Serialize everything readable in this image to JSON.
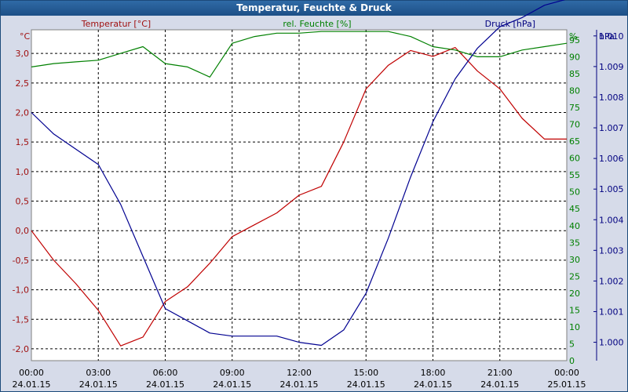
{
  "window": {
    "title": "Temperatur, Feuchte & Druck"
  },
  "chart_data": {
    "type": "line",
    "title": "Temperatur, Feuchte & Druck",
    "grid": true,
    "x": [
      "24.01.15 00:00",
      "24.01.15 01:00",
      "24.01.15 02:00",
      "24.01.15 03:00",
      "24.01.15 04:00",
      "24.01.15 05:00",
      "24.01.15 06:00",
      "24.01.15 07:00",
      "24.01.15 08:00",
      "24.01.15 09:00",
      "24.01.15 10:00",
      "24.01.15 11:00",
      "24.01.15 12:00",
      "24.01.15 13:00",
      "24.01.15 14:00",
      "24.01.15 15:00",
      "24.01.15 16:00",
      "24.01.15 17:00",
      "24.01.15 18:00",
      "24.01.15 19:00",
      "24.01.15 20:00",
      "24.01.15 21:00",
      "24.01.15 22:00",
      "24.01.15 23:00",
      "25.01.15 00:00"
    ],
    "x_ticks": [
      {
        "time": "00:00",
        "date": "24.01.15"
      },
      {
        "time": "03:00",
        "date": "24.01.15"
      },
      {
        "time": "06:00",
        "date": "24.01.15"
      },
      {
        "time": "09:00",
        "date": "24.01.15"
      },
      {
        "time": "12:00",
        "date": "24.01.15"
      },
      {
        "time": "15:00",
        "date": "24.01.15"
      },
      {
        "time": "18:00",
        "date": "24.01.15"
      },
      {
        "time": "21:00",
        "date": "24.01.15"
      },
      {
        "time": "00:00",
        "date": "25.01.15"
      }
    ],
    "axes": {
      "temperature": {
        "unit": "°C",
        "range": [
          -2.2,
          3.4
        ],
        "ticks": [
          "-2,0",
          "-1,5",
          "-1,0",
          "-0,5",
          "0,0",
          "0,5",
          "1,0",
          "1,5",
          "2,0",
          "2,5",
          "3,0"
        ],
        "color": "#a01010"
      },
      "humidity": {
        "unit": "%",
        "range": [
          0,
          98
        ],
        "ticks": [
          "0",
          "5",
          "10",
          "15",
          "20",
          "25",
          "30",
          "35",
          "40",
          "45",
          "50",
          "55",
          "60",
          "65",
          "70",
          "75",
          "80",
          "85",
          "90",
          "95"
        ],
        "color": "#008000"
      },
      "pressure": {
        "unit": "hPa",
        "range": [
          0.9994,
          1.0102
        ],
        "ticks": [
          "1.000",
          "1.001",
          "1.002",
          "1.003",
          "1.004",
          "1.005",
          "1.006",
          "1.007",
          "1.008",
          "1.009",
          "1.010"
        ],
        "color": "#000080"
      }
    },
    "series": [
      {
        "name": "Temperatur [°C]",
        "axis": "temperature",
        "color": "#c00000",
        "values": [
          0.0,
          -0.5,
          -0.9,
          -1.35,
          -1.95,
          -1.8,
          -1.2,
          -0.95,
          -0.55,
          -0.1,
          0.1,
          0.3,
          0.6,
          0.75,
          1.5,
          2.4,
          2.8,
          3.05,
          2.95,
          3.1,
          2.7,
          2.4,
          1.9,
          1.55,
          1.55
        ]
      },
      {
        "name": "rel. Feuchte [%]",
        "axis": "humidity",
        "color": "#008000",
        "values": [
          87,
          88,
          88.5,
          89,
          91,
          93,
          88,
          87,
          84,
          94,
          96,
          97,
          97,
          97.5,
          97.5,
          97.5,
          97.5,
          96,
          93,
          92,
          90,
          90,
          92,
          93,
          94
        ]
      },
      {
        "name": "Druck [hPa]",
        "axis": "pressure",
        "color": "#000090",
        "values": [
          1.0075,
          1.0068,
          1.0063,
          1.0058,
          1.0045,
          1.0028,
          1.0011,
          1.0007,
          1.0003,
          1.0002,
          1.0002,
          1.0002,
          1.0,
          0.9999,
          1.0004,
          1.0016,
          1.0034,
          1.0054,
          1.0072,
          1.0086,
          1.0096,
          1.0103,
          1.0106,
          1.011,
          1.0112
        ]
      }
    ]
  }
}
